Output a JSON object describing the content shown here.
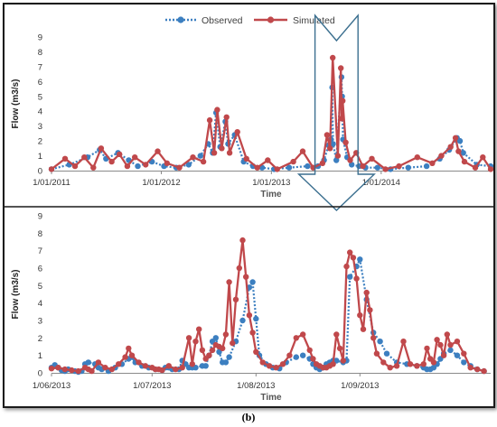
{
  "panel_label": "(b)",
  "legend": {
    "observed_label": "Observed",
    "simulated_label": "Simulated"
  },
  "colors": {
    "observed": "#3c7fc0",
    "simulated": "#c0484b",
    "arrow": "#3b6f8f",
    "frame": "#1a1a1a"
  },
  "chart_data": [
    {
      "type": "line",
      "title": "",
      "xlabel": "Time",
      "ylabel": "Flow (m3/s)",
      "ylim": [
        0,
        9
      ],
      "yticks": [
        "0",
        "1",
        "2",
        "3",
        "4",
        "5",
        "6",
        "7",
        "8",
        "9"
      ],
      "xticks": [
        {
          "date": "2011-01-01",
          "label": "1/01/2011"
        },
        {
          "date": "2012-01-01",
          "label": "1/01/2012"
        },
        {
          "date": "2013-01-01",
          "label": "1/01/2013"
        },
        {
          "date": "2014-01-01",
          "label": "1/01/2014"
        }
      ],
      "xrange": [
        "2011-01-01",
        "2014-12-31"
      ],
      "grid": false,
      "series": [
        {
          "name": "Observed",
          "style": "dotted",
          "marker": "circle",
          "x": [
            "2011-01-01",
            "2011-03-01",
            "2011-05-01",
            "2011-06-10",
            "2011-07-01",
            "2011-08-10",
            "2011-09-15",
            "2011-10-15",
            "2011-12-01",
            "2012-01-10",
            "2012-02-20",
            "2012-04-01",
            "2012-05-10",
            "2012-06-05",
            "2012-06-20",
            "2012-07-01",
            "2012-07-15",
            "2012-08-01",
            "2012-08-10",
            "2012-09-01",
            "2012-10-01",
            "2012-11-01",
            "2012-12-01",
            "2013-01-10",
            "2013-03-01",
            "2013-05-01",
            "2013-06-05",
            "2013-06-25",
            "2013-07-10",
            "2013-07-18",
            "2013-07-22",
            "2013-07-25",
            "2013-08-05",
            "2013-08-22",
            "2013-08-24",
            "2013-08-27",
            "2013-09-10",
            "2013-09-25",
            "2013-10-20",
            "2013-11-10",
            "2013-12-20",
            "2014-02-01",
            "2014-04-01",
            "2014-06-01",
            "2014-07-15",
            "2014-08-15",
            "2014-09-10",
            "2014-09-20",
            "2014-10-01",
            "2014-11-15",
            "2014-12-31"
          ],
          "values": [
            0.1,
            0.4,
            0.9,
            1.4,
            0.8,
            1.2,
            0.7,
            0.3,
            0.6,
            0.3,
            0.2,
            0.4,
            1.0,
            1.8,
            1.2,
            3.9,
            1.6,
            3.3,
            1.8,
            2.4,
            0.6,
            0.3,
            0.2,
            0.1,
            0.2,
            0.3,
            0.3,
            0.7,
            1.7,
            2.1,
            5.6,
            1.8,
            0.7,
            6.3,
            5.0,
            2.1,
            0.9,
            0.4,
            0.3,
            0.2,
            0.2,
            0.1,
            0.2,
            0.3,
            0.8,
            1.4,
            2.2,
            2.0,
            1.2,
            0.4,
            0.3
          ]
        },
        {
          "name": "Simulated",
          "style": "solid",
          "marker": "circle",
          "x": [
            "2011-01-01",
            "2011-02-15",
            "2011-03-20",
            "2011-04-20",
            "2011-05-20",
            "2011-06-15",
            "2011-07-20",
            "2011-08-15",
            "2011-09-10",
            "2011-10-05",
            "2011-11-10",
            "2011-12-20",
            "2012-01-20",
            "2012-03-01",
            "2012-04-15",
            "2012-05-20",
            "2012-06-10",
            "2012-06-25",
            "2012-07-05",
            "2012-07-20",
            "2012-08-05",
            "2012-08-15",
            "2012-09-10",
            "2012-10-10",
            "2012-11-15",
            "2012-12-20",
            "2013-01-20",
            "2013-03-15",
            "2013-04-15",
            "2013-05-20",
            "2013-06-20",
            "2013-07-05",
            "2013-07-15",
            "2013-07-24",
            "2013-08-10",
            "2013-08-20",
            "2013-08-23",
            "2013-08-26",
            "2013-09-05",
            "2013-09-20",
            "2013-10-10",
            "2013-11-01",
            "2013-12-01",
            "2014-01-15",
            "2014-03-01",
            "2014-05-01",
            "2014-06-20",
            "2014-07-20",
            "2014-08-20",
            "2014-09-05",
            "2014-09-15",
            "2014-10-05",
            "2014-11-10",
            "2014-12-05",
            "2014-12-31"
          ],
          "values": [
            0.1,
            0.8,
            0.3,
            0.9,
            0.2,
            1.5,
            0.6,
            1.1,
            0.3,
            0.9,
            0.4,
            1.3,
            0.5,
            0.2,
            0.9,
            0.6,
            3.4,
            1.2,
            4.1,
            1.5,
            3.6,
            1.2,
            2.6,
            0.8,
            0.2,
            0.7,
            0.1,
            0.6,
            1.3,
            0.2,
            0.5,
            2.4,
            1.5,
            7.6,
            1.0,
            6.9,
            3.5,
            4.7,
            1.9,
            0.7,
            1.2,
            0.3,
            0.8,
            0.1,
            0.3,
            0.9,
            0.5,
            1.0,
            1.6,
            2.2,
            1.3,
            0.6,
            0.2,
            0.9,
            0.1
          ]
        }
      ]
    },
    {
      "type": "line",
      "title": "",
      "xlabel": "Time",
      "ylabel": "Flow (m3/s)",
      "ylim": [
        0,
        9
      ],
      "yticks": [
        "0",
        "1",
        "2",
        "3",
        "4",
        "5",
        "6",
        "7",
        "8",
        "9"
      ],
      "xticks": [
        {
          "date": "2013-06-01",
          "label": "1/06/2013"
        },
        {
          "date": "2013-07-01",
          "label": "1/07/2013"
        },
        {
          "date": "2013-08-01",
          "label": "1/08/2013"
        },
        {
          "date": "2013-09-01",
          "label": "1/09/2013"
        }
      ],
      "xrange": [
        "2013-06-01",
        "2013-10-10"
      ],
      "grid": false,
      "series": [
        {
          "name": "Observed",
          "style": "dotted",
          "marker": "circle",
          "x": [
            "2013-06-01",
            "2013-06-02",
            "2013-06-03",
            "2013-06-04",
            "2013-06-05",
            "2013-06-06",
            "2013-06-08",
            "2013-06-09",
            "2013-06-10",
            "2013-06-11",
            "2013-06-12",
            "2013-06-14",
            "2013-06-15",
            "2013-06-16",
            "2013-06-18",
            "2013-06-20",
            "2013-06-22",
            "2013-06-24",
            "2013-06-25",
            "2013-06-26",
            "2013-06-28",
            "2013-06-30",
            "2013-07-02",
            "2013-07-04",
            "2013-07-05",
            "2013-07-06",
            "2013-07-07",
            "2013-07-09",
            "2013-07-10",
            "2013-07-11",
            "2013-07-12",
            "2013-07-13",
            "2013-07-14",
            "2013-07-16",
            "2013-07-17",
            "2013-07-18",
            "2013-07-19",
            "2013-07-20",
            "2013-07-21",
            "2013-07-22",
            "2013-07-23",
            "2013-07-24",
            "2013-07-26",
            "2013-07-28",
            "2013-07-30",
            "2013-07-31",
            "2013-08-01",
            "2013-08-02",
            "2013-08-04",
            "2013-08-06",
            "2013-08-08",
            "2013-08-10",
            "2013-08-13",
            "2013-08-15",
            "2013-08-17",
            "2013-08-18",
            "2013-08-19",
            "2013-08-20",
            "2013-08-21",
            "2013-08-22",
            "2013-08-23",
            "2013-08-24",
            "2013-08-25",
            "2013-08-27",
            "2013-08-28",
            "2013-08-29",
            "2013-08-31",
            "2013-09-01",
            "2013-09-03",
            "2013-09-05",
            "2013-09-07",
            "2013-09-09",
            "2013-09-12",
            "2013-09-15",
            "2013-09-18",
            "2013-09-20",
            "2013-09-21",
            "2013-09-22",
            "2013-09-23",
            "2013-09-24",
            "2013-09-25",
            "2013-09-26",
            "2013-09-28",
            "2013-09-30",
            "2013-10-02",
            "2013-10-04",
            "2013-10-06",
            "2013-10-08"
          ],
          "values": [
            0.3,
            0.45,
            0.3,
            0.15,
            0.1,
            0.2,
            0.1,
            0.05,
            0.1,
            0.5,
            0.6,
            0.5,
            0.3,
            0.2,
            0.1,
            0.3,
            0.5,
            0.8,
            0.9,
            0.6,
            0.4,
            0.3,
            0.2,
            0.15,
            0.3,
            0.3,
            0.2,
            0.2,
            0.7,
            0.5,
            0.3,
            0.3,
            0.3,
            0.4,
            0.4,
            1.0,
            1.8,
            2.0,
            1.2,
            0.6,
            0.6,
            0.9,
            1.8,
            3.0,
            4.9,
            5.2,
            3.1,
            1.0,
            0.5,
            0.3,
            0.25,
            0.6,
            0.9,
            1.0,
            0.8,
            0.5,
            0.3,
            0.2,
            0.3,
            0.5,
            0.6,
            0.7,
            0.7,
            0.6,
            0.7,
            5.5,
            6.1,
            6.5,
            4.2,
            2.3,
            1.8,
            1.1,
            0.6,
            0.5,
            0.4,
            0.3,
            0.2,
            0.2,
            0.3,
            0.5,
            0.8,
            1.1,
            1.3,
            1.0,
            0.6,
            0.4,
            0.2,
            0.1
          ]
        },
        {
          "name": "Simulated",
          "style": "solid",
          "marker": "circle",
          "x": [
            "2013-06-01",
            "2013-06-03",
            "2013-06-05",
            "2013-06-07",
            "2013-06-09",
            "2013-06-11",
            "2013-06-12",
            "2013-06-13",
            "2013-06-15",
            "2013-06-17",
            "2013-06-19",
            "2013-06-21",
            "2013-06-23",
            "2013-06-24",
            "2013-06-25",
            "2013-06-27",
            "2013-06-29",
            "2013-07-01",
            "2013-07-02",
            "2013-07-03",
            "2013-07-04",
            "2013-07-06",
            "2013-07-08",
            "2013-07-10",
            "2013-07-12",
            "2013-07-13",
            "2013-07-14",
            "2013-07-15",
            "2013-07-16",
            "2013-07-17",
            "2013-07-18",
            "2013-07-19",
            "2013-07-20",
            "2013-07-21",
            "2013-07-22",
            "2013-07-23",
            "2013-07-24",
            "2013-07-25",
            "2013-07-26",
            "2013-07-27",
            "2013-07-28",
            "2013-07-29",
            "2013-07-30",
            "2013-07-31",
            "2013-08-01",
            "2013-08-03",
            "2013-08-05",
            "2013-08-07",
            "2013-08-09",
            "2013-08-11",
            "2013-08-13",
            "2013-08-15",
            "2013-08-17",
            "2013-08-18",
            "2013-08-19",
            "2013-08-20",
            "2013-08-21",
            "2013-08-22",
            "2013-08-23",
            "2013-08-24",
            "2013-08-25",
            "2013-08-26",
            "2013-08-27",
            "2013-08-28",
            "2013-08-29",
            "2013-08-30",
            "2013-08-31",
            "2013-09-01",
            "2013-09-02",
            "2013-09-03",
            "2013-09-04",
            "2013-09-05",
            "2013-09-06",
            "2013-09-08",
            "2013-09-10",
            "2013-09-12",
            "2013-09-14",
            "2013-09-16",
            "2013-09-18",
            "2013-09-20",
            "2013-09-21",
            "2013-09-22",
            "2013-09-23",
            "2013-09-24",
            "2013-09-25",
            "2013-09-26",
            "2013-09-27",
            "2013-09-28",
            "2013-09-30",
            "2013-10-02",
            "2013-10-04",
            "2013-10-06",
            "2013-10-08"
          ],
          "values": [
            0.25,
            0.3,
            0.2,
            0.15,
            0.1,
            0.3,
            0.2,
            0.1,
            0.6,
            0.3,
            0.2,
            0.5,
            0.9,
            1.4,
            1.0,
            0.6,
            0.4,
            0.3,
            0.2,
            0.2,
            0.15,
            0.4,
            0.2,
            0.3,
            2.0,
            0.5,
            1.8,
            2.5,
            1.3,
            0.8,
            1.0,
            1.3,
            1.6,
            1.5,
            1.4,
            2.2,
            5.2,
            1.7,
            4.2,
            6.0,
            7.6,
            5.5,
            3.3,
            2.3,
            1.2,
            0.6,
            0.4,
            0.3,
            0.5,
            1.0,
            2.0,
            2.2,
            1.3,
            0.8,
            0.5,
            0.4,
            0.3,
            0.3,
            0.4,
            0.5,
            2.2,
            1.4,
            0.7,
            6.1,
            6.9,
            6.6,
            5.4,
            3.3,
            2.5,
            4.6,
            3.6,
            2.0,
            1.1,
            0.6,
            0.3,
            0.4,
            1.8,
            0.5,
            0.4,
            0.5,
            1.4,
            0.8,
            0.6,
            1.9,
            1.6,
            1.0,
            2.2,
            1.6,
            1.8,
            1.1,
            0.3,
            0.2,
            0.1
          ]
        }
      ]
    }
  ]
}
